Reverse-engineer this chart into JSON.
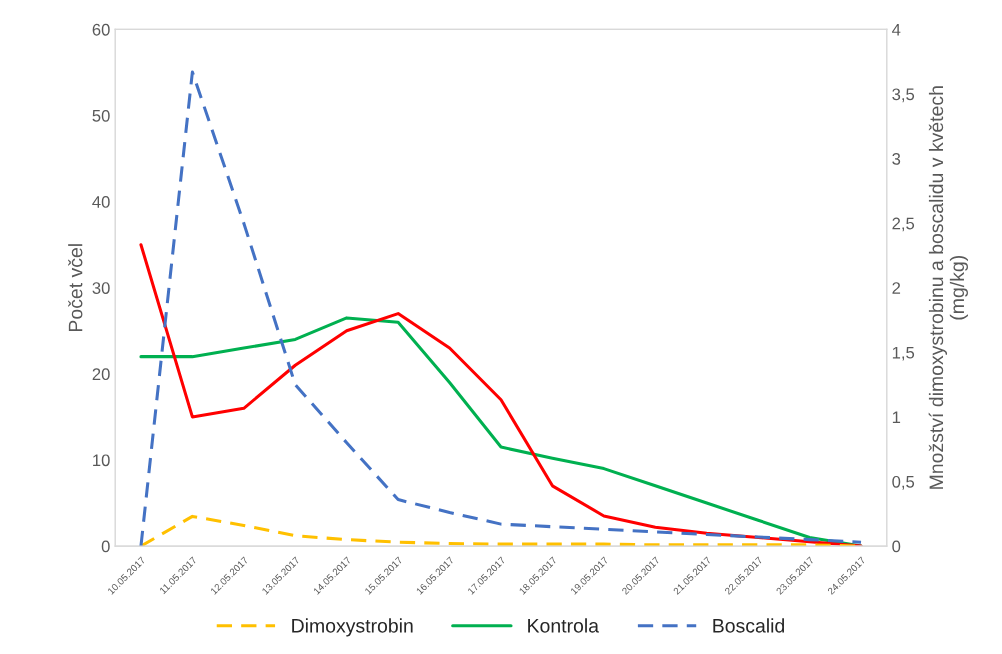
{
  "chart_data": {
    "type": "line",
    "categories": [
      "10.05.2017",
      "11.05.2017",
      "12.05.2017",
      "13.05.2017",
      "14.05.2017",
      "15.05.2017",
      "16.05.2017",
      "17.05.2017",
      "18.05.2017",
      "19.05.2017",
      "20.05.2017",
      "21.05.2017",
      "22.05.2017",
      "23.05.2017",
      "24.05.2017"
    ],
    "ylabel": "Počet včel",
    "y2label": "Množství dimoxystrobinu a boscalidu v květech\n(mg/kg)",
    "ylim": [
      0,
      60
    ],
    "yticks": [
      0,
      10,
      20,
      30,
      40,
      50,
      60
    ],
    "y2lim": [
      0,
      4
    ],
    "y2ticks": [
      0,
      {
        "value": 0.5,
        "label": "0,5"
      },
      1,
      {
        "value": 1.5,
        "label": "1,5"
      },
      2,
      {
        "value": 2.5,
        "label": "2,5"
      },
      3,
      {
        "value": 3.5,
        "label": "3,5"
      },
      4
    ],
    "grid": false,
    "legend": "bottom",
    "marker": "none",
    "series": [
      {
        "name": "Dimoxystrobin",
        "color": "#ffc000",
        "axis": "y2",
        "line_style": "dashed",
        "values": [
          0,
          0.23,
          0.16,
          0.08,
          0.05,
          0.03,
          0.02,
          0.015,
          0.015,
          0.015,
          0.01,
          0.01,
          0.01,
          0.01,
          0
        ]
      },
      {
        "name": "Kontrola",
        "color": "#00b050",
        "line_style": "solid",
        "values": [
          22,
          22,
          23,
          24,
          26.5,
          26,
          19,
          11.5,
          10.2,
          9,
          7,
          5,
          3,
          1,
          0
        ]
      },
      {
        "color": "#ff0000",
        "line_style": "solid",
        "values": [
          35,
          15,
          16,
          21,
          25,
          27,
          23,
          17,
          7,
          3.5,
          2.2,
          1.5,
          1,
          0.5,
          0
        ]
      },
      {
        "name": "Boscalid",
        "color": "#4472c4",
        "axis": "y2",
        "line_style": "dashed",
        "values": [
          0,
          3.67,
          2.5,
          1.25,
          0.8,
          0.36,
          0.26,
          0.17,
          0.15,
          0.13,
          0.11,
          0.09,
          0.07,
          0.05,
          0.03
        ]
      }
    ]
  }
}
